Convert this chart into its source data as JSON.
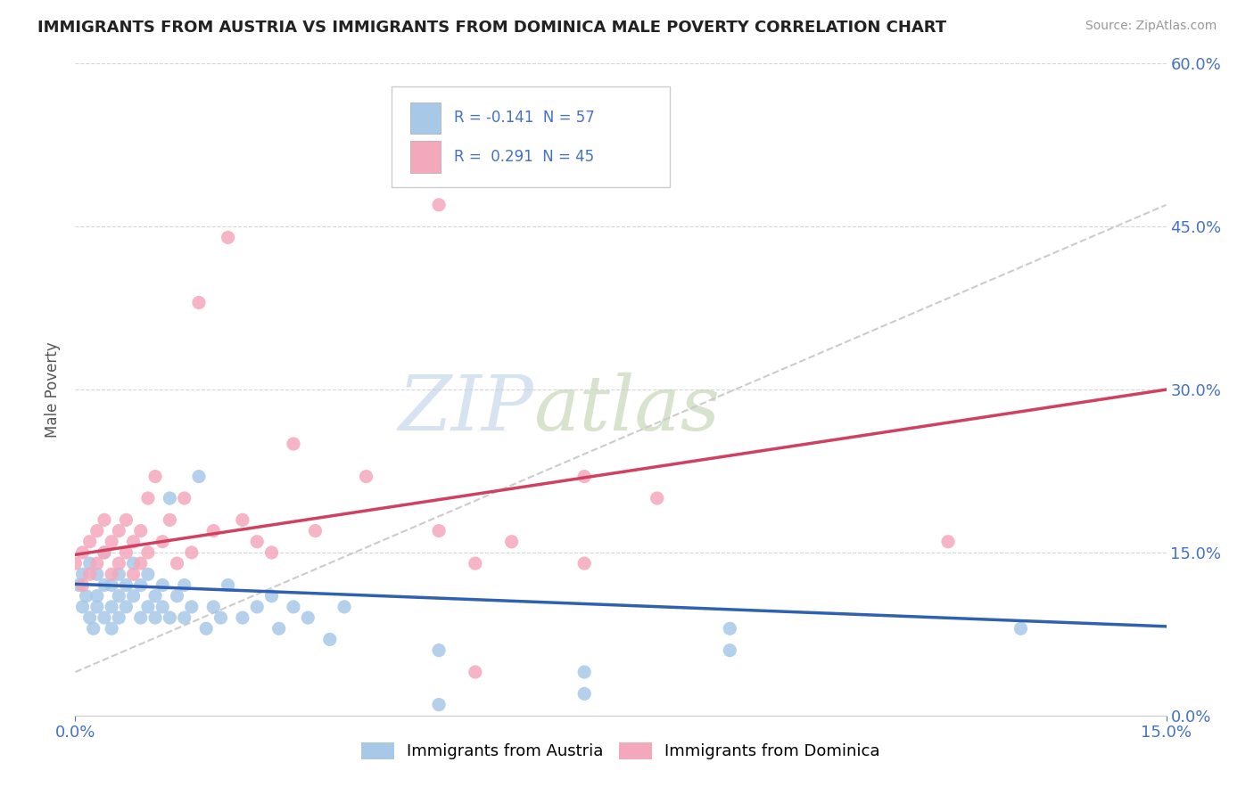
{
  "title": "IMMIGRANTS FROM AUSTRIA VS IMMIGRANTS FROM DOMINICA MALE POVERTY CORRELATION CHART",
  "source": "Source: ZipAtlas.com",
  "ylabel": "Male Poverty",
  "xlim": [
    0.0,
    0.15
  ],
  "ylim": [
    0.0,
    0.6
  ],
  "austria_color": "#a8c8e8",
  "dominica_color": "#f4a8bc",
  "austria_line_color": "#3060b0",
  "dominica_line_color": "#d04060",
  "gray_line_color": "#cccccc",
  "austria_R": -0.141,
  "austria_N": 57,
  "dominica_R": 0.291,
  "dominica_N": 45,
  "right_ytick_values": [
    0.0,
    0.15,
    0.3,
    0.45,
    0.6
  ],
  "right_ytick_labels": [
    "0.0%",
    "15.0%",
    "30.0%",
    "45.0%",
    "60.0%"
  ],
  "xtick_values": [
    0.0,
    0.15
  ],
  "xtick_labels": [
    "0.0%",
    "15.0%"
  ],
  "watermark_zip": "ZIP",
  "watermark_atlas": "atlas",
  "legend_austria_label": "Immigrants from Austria",
  "legend_dominica_label": "Immigrants from Dominica",
  "title_color": "#222222",
  "axis_label_color": "#555555",
  "tick_color": "#4472c4",
  "grid_color": "#cccccc",
  "background_color": "#ffffff",
  "austria_scatter_x": [
    0.0005,
    0.001,
    0.001,
    0.0015,
    0.002,
    0.002,
    0.0025,
    0.003,
    0.003,
    0.003,
    0.004,
    0.004,
    0.004,
    0.005,
    0.005,
    0.005,
    0.006,
    0.006,
    0.006,
    0.007,
    0.007,
    0.008,
    0.008,
    0.009,
    0.009,
    0.01,
    0.01,
    0.011,
    0.011,
    0.012,
    0.012,
    0.013,
    0.013,
    0.014,
    0.015,
    0.015,
    0.016,
    0.017,
    0.018,
    0.019,
    0.02,
    0.021,
    0.023,
    0.025,
    0.027,
    0.028,
    0.03,
    0.032,
    0.035,
    0.037,
    0.05,
    0.07,
    0.09,
    0.13,
    0.07,
    0.05,
    0.09
  ],
  "austria_scatter_y": [
    0.12,
    0.1,
    0.13,
    0.11,
    0.09,
    0.14,
    0.08,
    0.11,
    0.13,
    0.1,
    0.12,
    0.09,
    0.15,
    0.1,
    0.12,
    0.08,
    0.11,
    0.13,
    0.09,
    0.1,
    0.12,
    0.11,
    0.14,
    0.09,
    0.12,
    0.1,
    0.13,
    0.11,
    0.09,
    0.12,
    0.1,
    0.2,
    0.09,
    0.11,
    0.12,
    0.09,
    0.1,
    0.22,
    0.08,
    0.1,
    0.09,
    0.12,
    0.09,
    0.1,
    0.11,
    0.08,
    0.1,
    0.09,
    0.07,
    0.1,
    0.06,
    0.04,
    0.08,
    0.08,
    0.02,
    0.01,
    0.06
  ],
  "dominica_scatter_x": [
    0.0,
    0.001,
    0.001,
    0.002,
    0.002,
    0.003,
    0.003,
    0.004,
    0.004,
    0.005,
    0.005,
    0.006,
    0.006,
    0.007,
    0.007,
    0.008,
    0.008,
    0.009,
    0.009,
    0.01,
    0.01,
    0.011,
    0.012,
    0.013,
    0.014,
    0.015,
    0.016,
    0.017,
    0.019,
    0.021,
    0.023,
    0.025,
    0.027,
    0.03,
    0.033,
    0.04,
    0.05,
    0.055,
    0.06,
    0.07,
    0.08,
    0.07,
    0.05,
    0.12,
    0.055
  ],
  "dominica_scatter_y": [
    0.14,
    0.15,
    0.12,
    0.16,
    0.13,
    0.17,
    0.14,
    0.18,
    0.15,
    0.16,
    0.13,
    0.17,
    0.14,
    0.15,
    0.18,
    0.16,
    0.13,
    0.17,
    0.14,
    0.2,
    0.15,
    0.22,
    0.16,
    0.18,
    0.14,
    0.2,
    0.15,
    0.38,
    0.17,
    0.44,
    0.18,
    0.16,
    0.15,
    0.25,
    0.17,
    0.22,
    0.17,
    0.14,
    0.16,
    0.22,
    0.2,
    0.14,
    0.47,
    0.16,
    0.04
  ],
  "austria_line_x0": 0.0,
  "austria_line_y0": 0.121,
  "austria_line_x1": 0.15,
  "austria_line_y1": 0.082,
  "dominica_line_x0": 0.0,
  "dominica_line_y0": 0.148,
  "dominica_line_x1": 0.15,
  "dominica_line_y1": 0.3,
  "gray_line_x0": 0.0,
  "gray_line_y0": 0.04,
  "gray_line_x1": 0.15,
  "gray_line_y1": 0.47
}
